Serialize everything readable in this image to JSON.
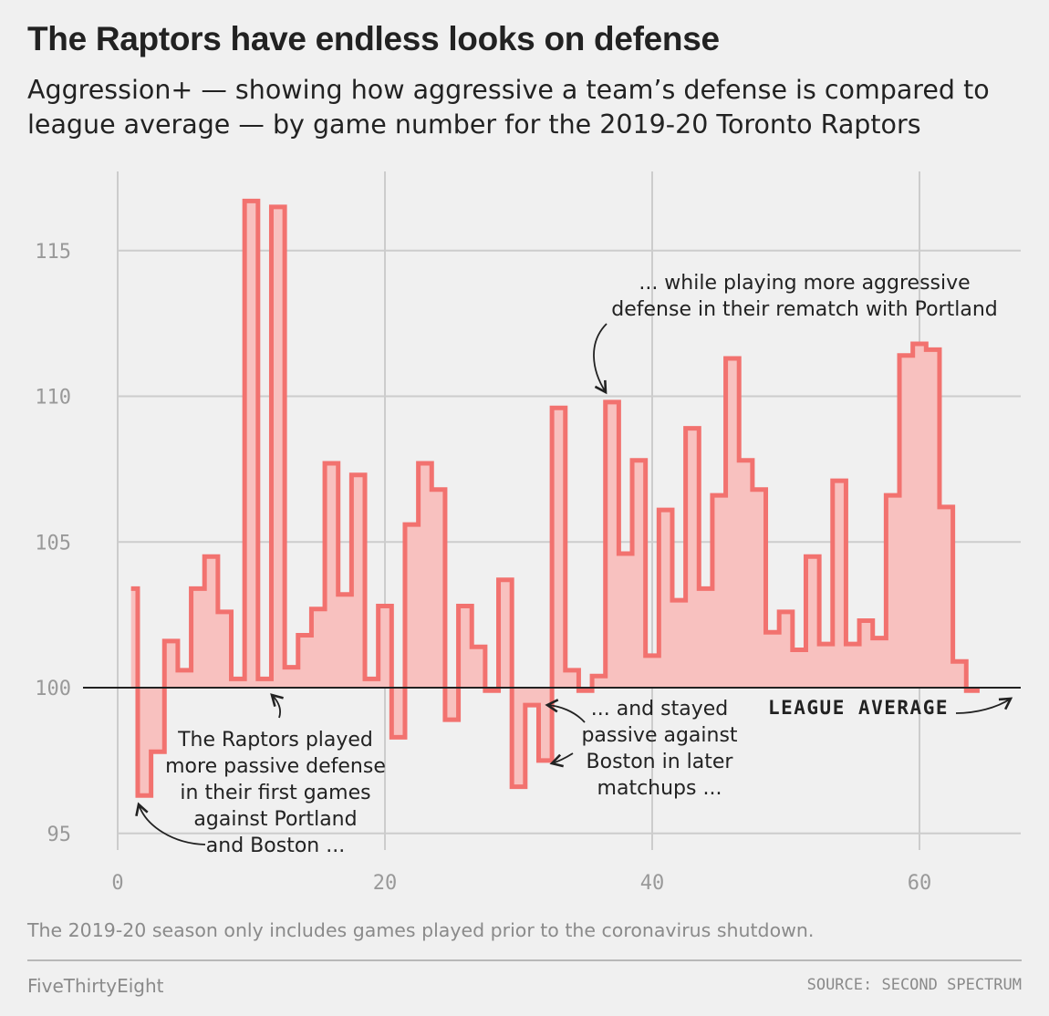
{
  "header": {
    "title": "The Raptors have endless looks on defense",
    "subtitle": "Aggression+ — showing how aggressive a team’s defense is compared to league average — by game number for the 2019-20 Toronto Raptors"
  },
  "footer": {
    "note": "The 2019-20 season only includes games played prior to the coronavirus shutdown.",
    "brand": "FiveThirtyEight",
    "source": "SOURCE: SECOND SPECTRUM"
  },
  "chart_data": {
    "type": "line",
    "step": true,
    "title": "The Raptors have endless looks on defense",
    "xlabel": "",
    "ylabel": "",
    "xlim": [
      0,
      68
    ],
    "ylim": [
      94,
      118
    ],
    "baseline": 100,
    "xticks": [
      0,
      20,
      40,
      60
    ],
    "yticks": [
      95,
      100,
      105,
      110,
      115
    ],
    "grid": true,
    "fill": true,
    "colors": {
      "line": "#f2726f",
      "fill": "#f8c1bf",
      "grid": "#cccccc",
      "axis": "#222222",
      "background": "#f0f0f0"
    },
    "series": [
      {
        "x": [
          1,
          2,
          3,
          4,
          5,
          6,
          7,
          8,
          9,
          10,
          11,
          12,
          13,
          14,
          15,
          16,
          17,
          18,
          19,
          20,
          21,
          22,
          23,
          24,
          25,
          26,
          27,
          28,
          29,
          30,
          31,
          32,
          33,
          34,
          35,
          36,
          37,
          38,
          39,
          40,
          41,
          42,
          43,
          44,
          45,
          46,
          47,
          48,
          49,
          50,
          51,
          52,
          53,
          54,
          55,
          56,
          57,
          58,
          59,
          60,
          61,
          62,
          63,
          64
        ],
        "y": [
          103.4,
          96.3,
          97.8,
          101.6,
          100.6,
          103.4,
          104.5,
          102.6,
          100.3,
          116.7,
          100.3,
          116.5,
          100.7,
          101.8,
          102.7,
          107.7,
          103.2,
          107.3,
          100.3,
          102.8,
          98.3,
          105.6,
          107.7,
          106.8,
          98.9,
          102.8,
          101.4,
          99.9,
          103.7,
          96.6,
          99.4,
          97.5,
          109.6,
          100.6,
          99.9,
          100.4,
          109.8,
          104.6,
          107.8,
          101.1,
          106.1,
          103.0,
          108.9,
          103.4,
          106.6,
          111.3,
          107.8,
          106.8,
          101.9,
          102.6,
          101.3,
          104.5,
          101.5,
          107.1,
          101.5,
          102.3,
          101.7,
          106.6,
          111.4,
          111.8,
          111.6,
          106.2,
          100.9,
          99.9
        ]
      }
    ],
    "annotations": {
      "league_average": "LEAGUE AVERAGE",
      "early": [
        "The Raptors played",
        "more passive defense",
        "in their first games",
        "against Portland",
        "and Boston ..."
      ],
      "later": [
        "... and stayed",
        "passive against",
        "Boston in later",
        "matchups ..."
      ],
      "rematch": [
        "... while playing more aggressive",
        "defense in their rematch with Portland"
      ]
    }
  }
}
